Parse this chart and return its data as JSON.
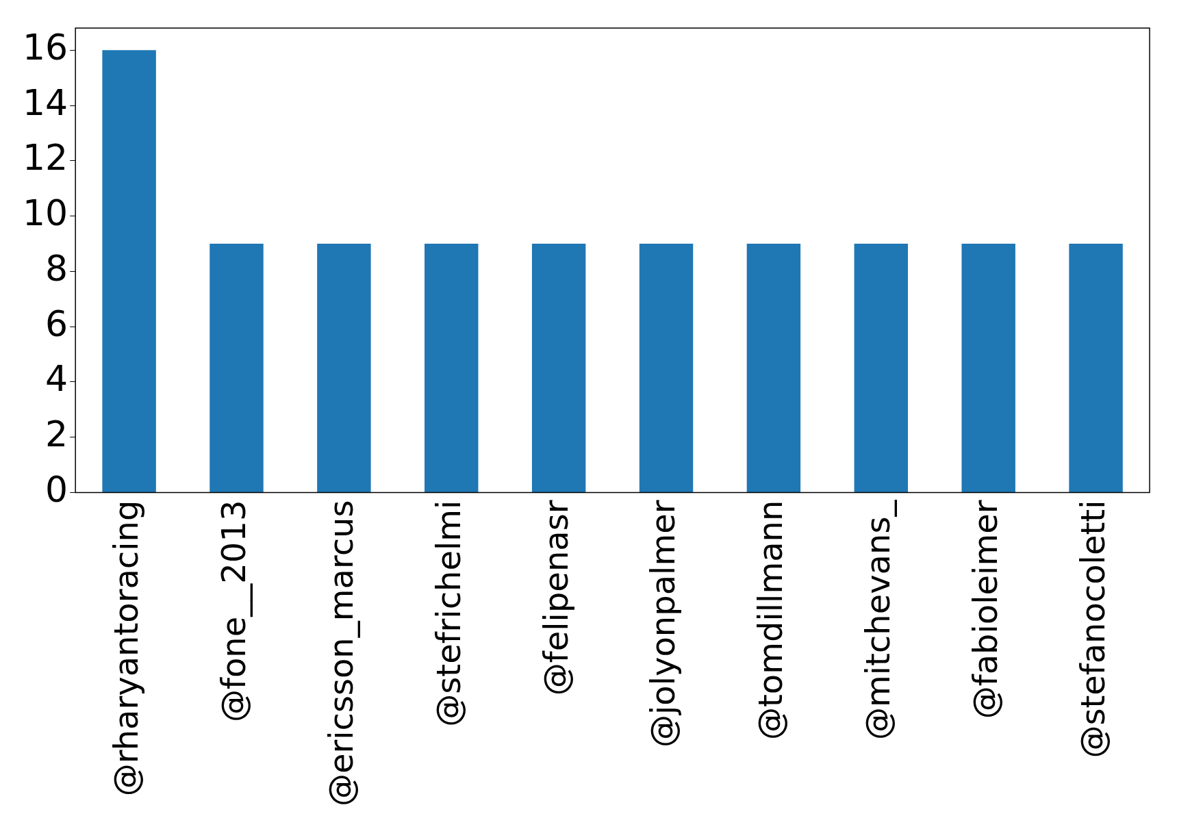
{
  "chart_data": {
    "type": "bar",
    "categories": [
      "@rharyantoracing",
      "@fone__2013",
      "@ericsson_marcus",
      "@stefrichelmi",
      "@felipenasr",
      "@jolyonpalmer",
      "@tomdillmann",
      "@mitchevans_",
      "@fabioleimer",
      "@stefanocoletti"
    ],
    "values": [
      16,
      9,
      9,
      9,
      9,
      9,
      9,
      9,
      9,
      9
    ],
    "color": "#1f77b4",
    "ylim": [
      0,
      16.8
    ],
    "yticks": [
      0,
      2,
      4,
      6,
      8,
      10,
      12,
      14,
      16
    ],
    "grid": false,
    "legend": false
  }
}
